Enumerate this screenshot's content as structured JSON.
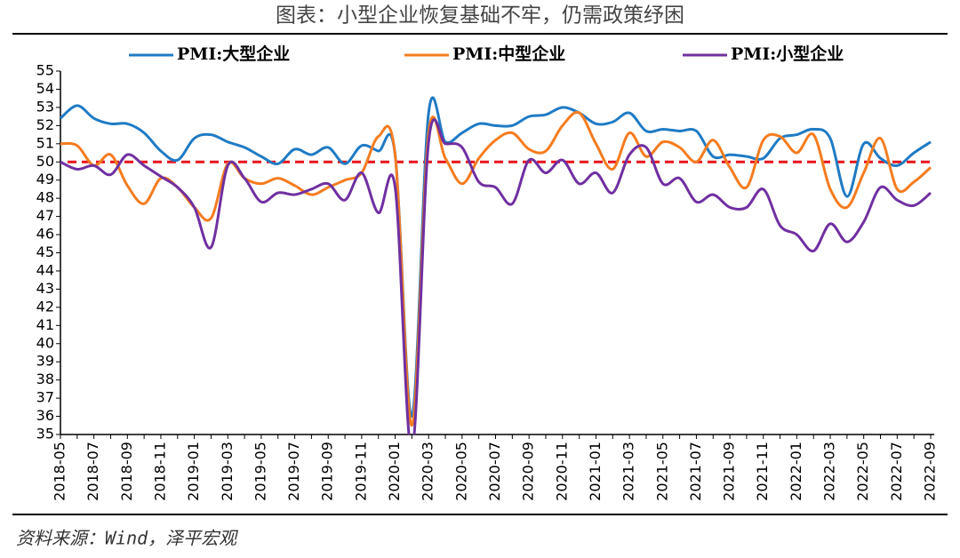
{
  "chart_data": {
    "type": "line",
    "title": "图表：小型企业恢复基础不牢，仍需政策纾困",
    "source": "资料来源：Wind，泽平宏观",
    "categories": [
      "2018-05",
      null,
      "2018-07",
      null,
      "2018-09",
      null,
      "2018-11",
      null,
      "2019-01",
      null,
      "2019-03",
      null,
      "2019-05",
      null,
      "2019-07",
      null,
      "2019-09",
      null,
      "2019-11",
      null,
      "2020-01",
      null,
      "2020-03",
      null,
      "2020-05",
      null,
      "2020-07",
      null,
      "2020-09",
      null,
      "2020-11",
      null,
      "2021-01",
      null,
      "2021-03",
      null,
      "2021-05",
      null,
      "2021-07",
      null,
      "2021-09",
      null,
      "2021-11",
      null,
      "2022-01",
      null,
      "2022-03",
      null,
      "2022-05",
      null,
      "2022-07",
      null,
      "2022-09"
    ],
    "series": [
      {
        "name": "PMI:大型企业",
        "color": "#1f7bc4",
        "values": [
          52.4,
          53.1,
          52.4,
          52.1,
          52.1,
          51.6,
          50.6,
          50.1,
          51.3,
          51.5,
          51.1,
          50.8,
          50.3,
          49.9,
          50.7,
          50.4,
          50.8,
          49.9,
          50.9,
          50.6,
          50.4,
          36.0,
          52.7,
          51.1,
          51.6,
          52.1,
          52.0,
          52.0,
          52.5,
          52.6,
          53.0,
          52.7,
          52.1,
          52.2,
          52.7,
          51.7,
          51.8,
          51.7,
          51.7,
          50.3,
          50.4,
          50.3,
          50.2,
          51.3,
          51.5,
          51.8,
          51.3,
          48.1,
          51.0,
          50.2,
          49.8,
          50.5,
          51.1
        ]
      },
      {
        "name": "PMI:中型企业",
        "color": "#f47c20",
        "values": [
          51.0,
          50.9,
          49.8,
          50.4,
          48.7,
          47.7,
          49.1,
          48.6,
          47.5,
          46.9,
          49.9,
          49.1,
          48.8,
          49.1,
          48.7,
          48.2,
          48.6,
          49.0,
          49.4,
          51.4,
          50.4,
          35.5,
          51.6,
          50.2,
          48.8,
          50.2,
          51.2,
          51.6,
          50.7,
          50.6,
          52.0,
          52.7,
          51.0,
          49.6,
          51.6,
          50.3,
          51.1,
          50.8,
          50.0,
          51.2,
          49.7,
          48.6,
          51.2,
          51.4,
          50.5,
          51.5,
          48.5,
          47.5,
          49.4,
          51.3,
          48.5,
          48.9,
          49.7
        ]
      },
      {
        "name": "PMI:小型企业",
        "color": "#7030a0",
        "values": [
          50.0,
          49.6,
          49.8,
          49.3,
          50.4,
          49.8,
          49.2,
          48.6,
          47.5,
          45.3,
          49.8,
          49.1,
          47.8,
          48.3,
          48.2,
          48.5,
          48.8,
          47.9,
          49.4,
          47.2,
          48.6,
          34.1,
          51.1,
          51.0,
          50.8,
          48.9,
          48.6,
          47.7,
          50.1,
          49.4,
          50.1,
          48.8,
          49.4,
          48.3,
          50.4,
          50.8,
          48.8,
          49.1,
          47.8,
          48.2,
          47.5,
          47.5,
          48.5,
          46.5,
          46.0,
          45.1,
          46.6,
          45.6,
          46.7,
          48.6,
          47.9,
          47.6,
          48.3
        ]
      }
    ],
    "reference_line": {
      "value": 50,
      "color": "#e8141c"
    },
    "ylim": [
      35,
      55
    ],
    "yticks": [
      35,
      36,
      37,
      38,
      39,
      40,
      41,
      42,
      43,
      44,
      45,
      46,
      47,
      48,
      49,
      50,
      51,
      52,
      53,
      54,
      55
    ]
  }
}
